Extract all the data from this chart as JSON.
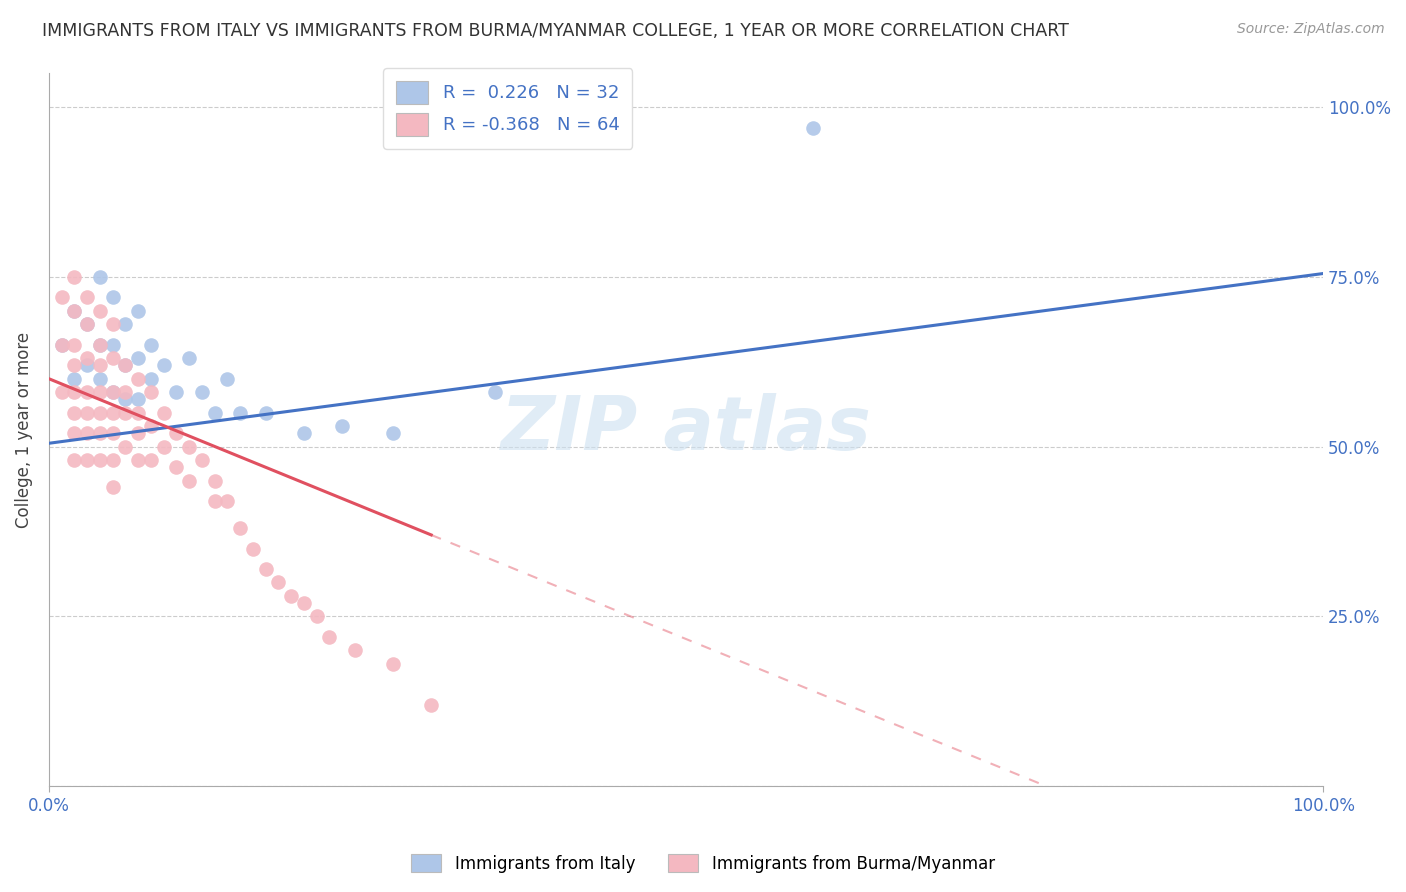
{
  "title": "IMMIGRANTS FROM ITALY VS IMMIGRANTS FROM BURMA/MYANMAR COLLEGE, 1 YEAR OR MORE CORRELATION CHART",
  "source": "Source: ZipAtlas.com",
  "ylabel": "College, 1 year or more",
  "xlim": [
    0.0,
    1.0
  ],
  "ylim": [
    0.0,
    1.05
  ],
  "yticks": [
    0.0,
    0.25,
    0.5,
    0.75,
    1.0
  ],
  "ytick_labels": [
    "",
    "25.0%",
    "50.0%",
    "75.0%",
    "100.0%"
  ],
  "legend1_label": "R =  0.226   N = 32",
  "legend2_label": "R = -0.368   N = 64",
  "legend1_color": "#aec6e8",
  "legend2_color": "#f4b8c1",
  "line1_color": "#4472C4",
  "line2_color": "#E05060",
  "background_color": "#ffffff",
  "grid_color": "#cccccc",
  "scatter_italy_x": [
    0.01,
    0.02,
    0.02,
    0.03,
    0.03,
    0.04,
    0.04,
    0.04,
    0.05,
    0.05,
    0.05,
    0.06,
    0.06,
    0.06,
    0.07,
    0.07,
    0.07,
    0.08,
    0.08,
    0.09,
    0.1,
    0.11,
    0.12,
    0.13,
    0.14,
    0.15,
    0.17,
    0.2,
    0.23,
    0.27,
    0.35,
    0.6
  ],
  "scatter_italy_y": [
    0.65,
    0.7,
    0.6,
    0.68,
    0.62,
    0.75,
    0.65,
    0.6,
    0.72,
    0.65,
    0.58,
    0.68,
    0.62,
    0.57,
    0.7,
    0.63,
    0.57,
    0.65,
    0.6,
    0.62,
    0.58,
    0.63,
    0.58,
    0.55,
    0.6,
    0.55,
    0.55,
    0.52,
    0.53,
    0.52,
    0.58,
    0.97
  ],
  "scatter_burma_x": [
    0.01,
    0.01,
    0.01,
    0.02,
    0.02,
    0.02,
    0.02,
    0.02,
    0.02,
    0.02,
    0.02,
    0.03,
    0.03,
    0.03,
    0.03,
    0.03,
    0.03,
    0.03,
    0.04,
    0.04,
    0.04,
    0.04,
    0.04,
    0.04,
    0.04,
    0.05,
    0.05,
    0.05,
    0.05,
    0.05,
    0.05,
    0.05,
    0.06,
    0.06,
    0.06,
    0.06,
    0.07,
    0.07,
    0.07,
    0.07,
    0.08,
    0.08,
    0.08,
    0.09,
    0.09,
    0.1,
    0.1,
    0.11,
    0.11,
    0.12,
    0.13,
    0.13,
    0.14,
    0.15,
    0.16,
    0.17,
    0.18,
    0.19,
    0.2,
    0.21,
    0.22,
    0.24,
    0.27,
    0.3
  ],
  "scatter_burma_y": [
    0.72,
    0.65,
    0.58,
    0.75,
    0.7,
    0.65,
    0.62,
    0.58,
    0.55,
    0.52,
    0.48,
    0.72,
    0.68,
    0.63,
    0.58,
    0.55,
    0.52,
    0.48,
    0.7,
    0.65,
    0.62,
    0.58,
    0.55,
    0.52,
    0.48,
    0.68,
    0.63,
    0.58,
    0.55,
    0.52,
    0.48,
    0.44,
    0.62,
    0.58,
    0.55,
    0.5,
    0.6,
    0.55,
    0.52,
    0.48,
    0.58,
    0.53,
    0.48,
    0.55,
    0.5,
    0.52,
    0.47,
    0.5,
    0.45,
    0.48,
    0.45,
    0.42,
    0.42,
    0.38,
    0.35,
    0.32,
    0.3,
    0.28,
    0.27,
    0.25,
    0.22,
    0.2,
    0.18,
    0.12
  ],
  "line1_x0": 0.0,
  "line1_y0": 0.505,
  "line1_x1": 1.0,
  "line1_y1": 0.755,
  "line2_x0": 0.0,
  "line2_y0": 0.6,
  "line2_x1": 0.3,
  "line2_y1": 0.37,
  "line2_dash_x0": 0.3,
  "line2_dash_x1": 1.0
}
